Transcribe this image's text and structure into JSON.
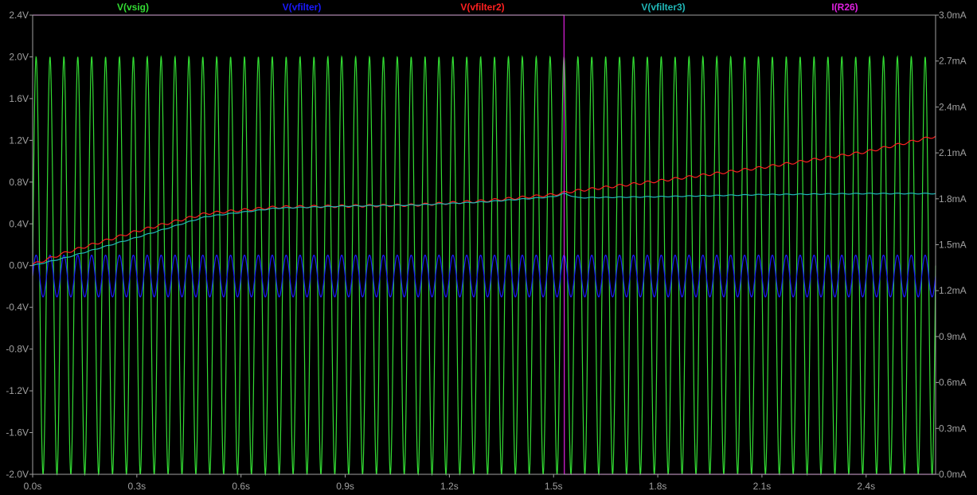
{
  "chart_data": {
    "type": "line",
    "title": "",
    "xlabel": "",
    "ylabel": "",
    "xlim": [
      0,
      2.6
    ],
    "ylim_left": [
      -2.0,
      2.4
    ],
    "ylim_right": [
      0.0,
      3.0
    ],
    "grid": false,
    "legend_placement": "top",
    "x_ticks": [
      "0.0s",
      "0.3s",
      "0.6s",
      "0.9s",
      "1.2s",
      "1.5s",
      "1.8s",
      "2.1s",
      "2.4s"
    ],
    "x_tick_values": [
      0,
      0.3,
      0.6,
      0.9,
      1.2,
      1.5,
      1.8,
      2.1,
      2.4
    ],
    "y_ticks_left": [
      "2.4V",
      "2.0V",
      "1.6V",
      "1.2V",
      "0.8V",
      "0.4V",
      "0.0V",
      "-0.4V",
      "-0.8V",
      "-1.2V",
      "-1.6V",
      "-2.0V"
    ],
    "y_tick_values_left": [
      2.4,
      2.0,
      1.6,
      1.2,
      0.8,
      0.4,
      0.0,
      -0.4,
      -0.8,
      -1.2,
      -1.6,
      -2.0
    ],
    "y_ticks_right": [
      "3.0mA",
      "2.7mA",
      "2.4mA",
      "2.1mA",
      "1.8mA",
      "1.5mA",
      "1.2mA",
      "0.9mA",
      "0.6mA",
      "0.3mA",
      "0.0mA"
    ],
    "y_tick_values_right": [
      3.0,
      2.7,
      2.4,
      2.1,
      1.8,
      1.5,
      1.2,
      0.9,
      0.6,
      0.3,
      0.0
    ],
    "series": [
      {
        "name": "V(vsig)",
        "color": "#33dd33",
        "axis": "left",
        "signal": "sine",
        "amplitude": 2.0,
        "offset": 0.0,
        "frequency_hz": 25,
        "t_start": 0.0,
        "t_end": 2.6
      },
      {
        "name": "V(vfilter)",
        "color": "#1a1aff",
        "axis": "left",
        "signal": "sine",
        "amplitude": 0.2,
        "offset": -0.1,
        "frequency_hz": 25,
        "t_start": 0.0,
        "t_end": 2.6
      },
      {
        "name": "V(vfilter2)",
        "color": "#ff2020",
        "axis": "left",
        "signal": "trend_with_ripple",
        "ripple_amplitude": 0.012,
        "frequency_hz": 25,
        "trend_x": [
          0.0,
          0.1,
          0.3,
          0.5,
          0.7,
          0.9,
          1.1,
          1.3,
          1.5,
          1.55,
          1.8,
          2.1,
          2.4,
          2.6
        ],
        "trend_y": [
          0.01,
          0.13,
          0.33,
          0.5,
          0.56,
          0.57,
          0.58,
          0.62,
          0.68,
          0.71,
          0.81,
          0.94,
          1.09,
          1.24
        ]
      },
      {
        "name": "V(vfilter3)",
        "color": "#20b8b8",
        "axis": "left",
        "signal": "trend_with_ripple",
        "ripple_amplitude": 0.004,
        "frequency_hz": 25,
        "trend_x": [
          0.0,
          0.1,
          0.3,
          0.5,
          0.7,
          0.9,
          1.1,
          1.3,
          1.5,
          1.53,
          1.57,
          1.8,
          2.1,
          2.4,
          2.6
        ],
        "trend_y": [
          0.0,
          0.08,
          0.27,
          0.47,
          0.55,
          0.57,
          0.58,
          0.61,
          0.66,
          0.69,
          0.65,
          0.66,
          0.68,
          0.69,
          0.69
        ]
      },
      {
        "name": "I(R26)",
        "color": "#e020e0",
        "axis": "right",
        "signal": "step",
        "x": [
          0.0,
          1.53,
          1.531,
          2.6
        ],
        "y": [
          3.0,
          3.0,
          0.0,
          0.0
        ]
      }
    ]
  }
}
